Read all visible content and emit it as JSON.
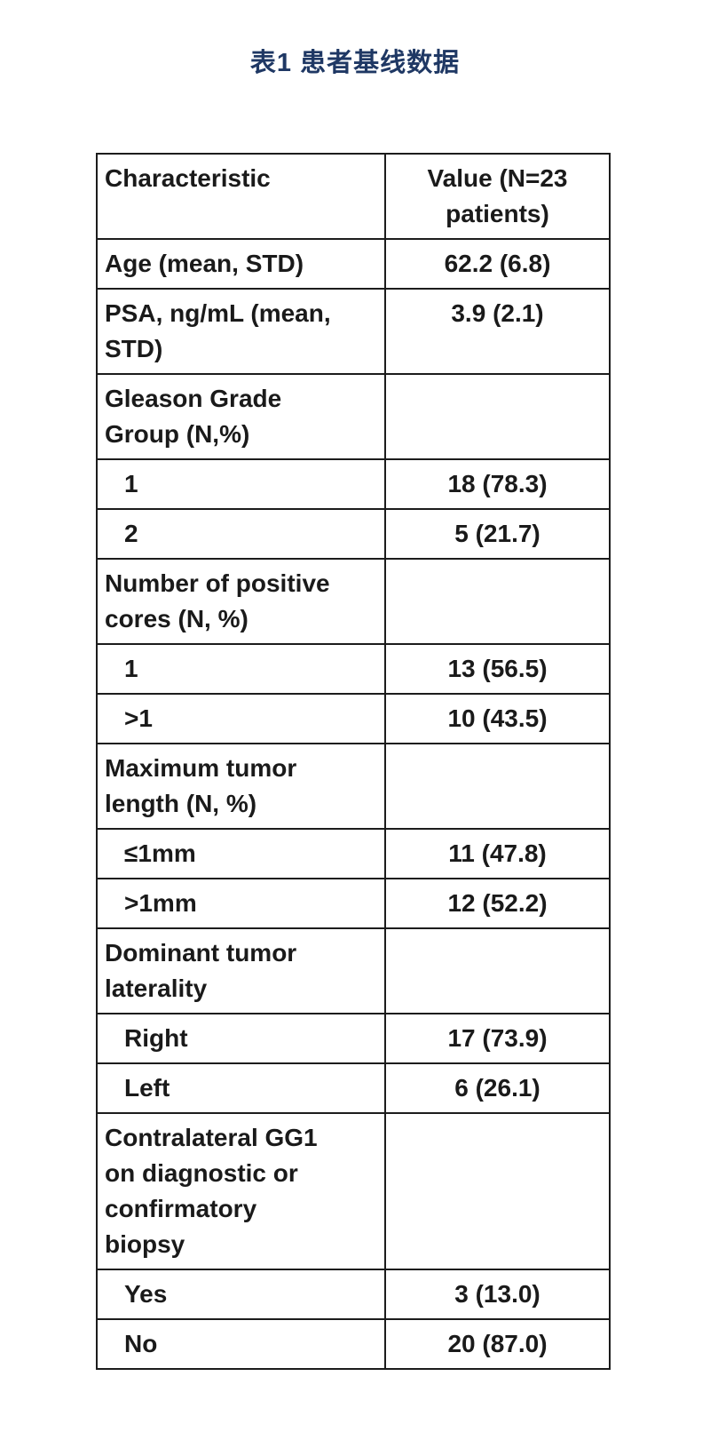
{
  "title": "表1 患者基线数据",
  "table": {
    "headers": [
      "Characteristic",
      "Value (N=23\npatients)"
    ],
    "rows": [
      {
        "label": "Age (mean, STD)",
        "value": "62.2 (6.8)",
        "indent": false
      },
      {
        "label": "PSA, ng/mL (mean,\nSTD)",
        "value": "3.9 (2.1)",
        "indent": false
      },
      {
        "label": "Gleason Grade\nGroup (N,%)",
        "value": "",
        "indent": false
      },
      {
        "label": "1",
        "value": "18 (78.3)",
        "indent": true
      },
      {
        "label": "2",
        "value": "5 (21.7)",
        "indent": true
      },
      {
        "label": "Number of positive\ncores (N, %)",
        "value": "",
        "indent": false
      },
      {
        "label": "1",
        "value": "13 (56.5)",
        "indent": true
      },
      {
        "label": ">1",
        "value": "10 (43.5)",
        "indent": true
      },
      {
        "label": "Maximum tumor\nlength (N, %)",
        "value": "",
        "indent": false
      },
      {
        "label": "≤1mm",
        "value": "11 (47.8)",
        "indent": true
      },
      {
        "label": ">1mm",
        "value": "12 (52.2)",
        "indent": true
      },
      {
        "label": "Dominant tumor\nlaterality",
        "value": "",
        "indent": false
      },
      {
        "label": "Right",
        "value": "17 (73.9)",
        "indent": true
      },
      {
        "label": "Left",
        "value": "6 (26.1)",
        "indent": true
      },
      {
        "label": "Contralateral GG1\non diagnostic or\nconfirmatory\nbiopsy",
        "value": "",
        "indent": false
      },
      {
        "label": "Yes",
        "value": "3 (13.0)",
        "indent": true
      },
      {
        "label": "No",
        "value": "20 (87.0)",
        "indent": true
      }
    ]
  },
  "colors": {
    "title": "#1f3864",
    "text": "#1a1a1a",
    "border": "#1c1c1c",
    "background": "#ffffff"
  }
}
